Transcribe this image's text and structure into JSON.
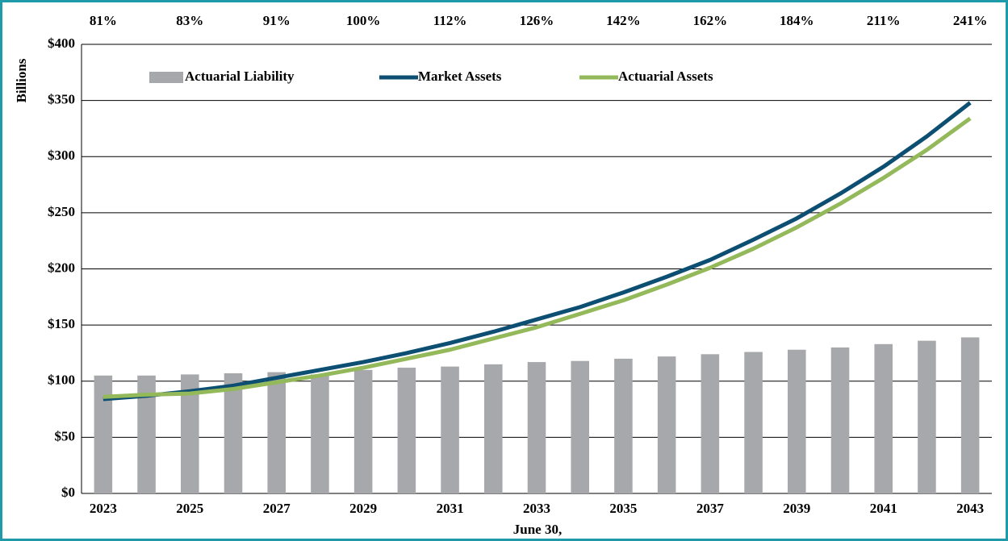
{
  "chart_data": {
    "type": "bar-line",
    "y_axis_label": "Billions",
    "x_axis_label": "June 30,",
    "categories": [
      "2023",
      null,
      "2025",
      null,
      "2027",
      null,
      "2029",
      null,
      "2031",
      null,
      "2033",
      null,
      "2035",
      null,
      "2037",
      null,
      "2039",
      null,
      "2041",
      null,
      "2043"
    ],
    "top_labels": [
      "81%",
      null,
      "83%",
      null,
      "91%",
      null,
      "100%",
      null,
      "112%",
      null,
      "126%",
      null,
      "142%",
      null,
      "162%",
      null,
      "184%",
      null,
      "211%",
      null,
      "241%"
    ],
    "ylim": [
      0,
      400
    ],
    "yticks": [
      {
        "value": 0,
        "label": "$0"
      },
      {
        "value": 50,
        "label": "$50"
      },
      {
        "value": 100,
        "label": "$100"
      },
      {
        "value": 150,
        "label": "$150"
      },
      {
        "value": 200,
        "label": "$200"
      },
      {
        "value": 250,
        "label": "$250"
      },
      {
        "value": 300,
        "label": "$300"
      },
      {
        "value": 350,
        "label": "$350"
      },
      {
        "value": 400,
        "label": "$400"
      }
    ],
    "grid": true,
    "series": [
      {
        "name": "Actuarial Liability",
        "kind": "bar",
        "color": "#a6a8ab",
        "values": [
          105,
          105,
          106,
          107,
          108,
          106,
          110,
          112,
          113,
          115,
          117,
          118,
          120,
          122,
          124,
          126,
          128,
          130,
          133,
          136,
          139
        ]
      },
      {
        "name": "Market Assets",
        "kind": "line",
        "color": "#0d4f72",
        "values": [
          84,
          87,
          91,
          96,
          103,
          110,
          117,
          125,
          134,
          144,
          155,
          166,
          179,
          193,
          208,
          226,
          245,
          267,
          291,
          318,
          348
        ]
      },
      {
        "name": "Actuarial Assets",
        "kind": "line",
        "color": "#94b95a",
        "values": [
          86,
          88,
          89,
          93,
          99,
          105,
          112,
          120,
          128,
          138,
          148,
          160,
          172,
          186,
          201,
          218,
          237,
          258,
          281,
          306,
          334
        ]
      }
    ]
  }
}
